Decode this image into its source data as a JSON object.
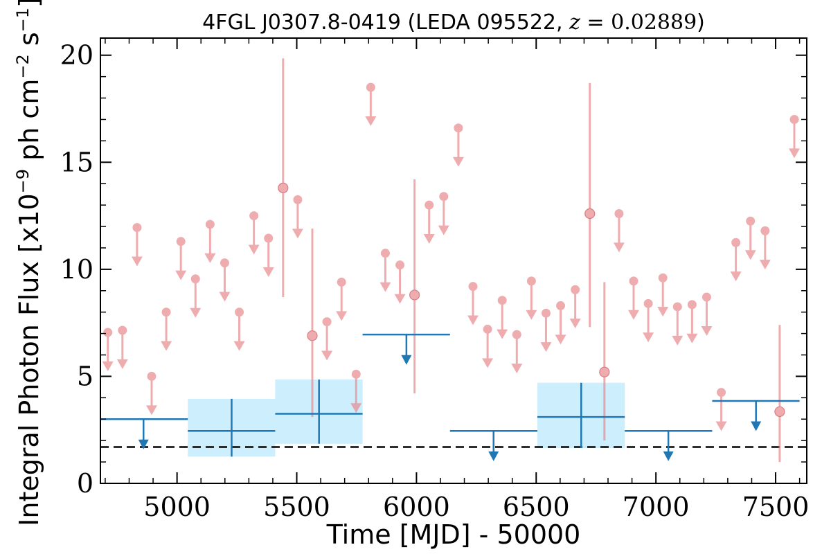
{
  "chart_data": {
    "type": "scatter",
    "title": "4FGL J0307.8-0419 (LEDA 095522, z = 0.02889)",
    "title_parts": {
      "prefix": "4FGL J0307.8-0419 (LEDA 095522, ",
      "z_symbol": "z",
      "z_equals": " = ",
      "z_value": "0.02889",
      "suffix": ")"
    },
    "xlabel": "Time [MJD] - 50000",
    "ylabel": "Integral Photon Flux [x10",
    "ylabel_exp": "−9",
    "ylabel_mid": " ph cm",
    "ylabel_exp2": "−2",
    "ylabel_tail": " s",
    "ylabel_exp3": "−1",
    "ylabel_end": "]",
    "xlim": [
      4680,
      7630
    ],
    "ylim": [
      0,
      20.8
    ],
    "xticks": [
      5000,
      5500,
      6000,
      6500,
      7000,
      7500
    ],
    "yticks": [
      0,
      5,
      10,
      15,
      20
    ],
    "grid": false,
    "baseline_dashed": 1.7,
    "colors": {
      "short_bin": "#e8868a",
      "long_bin": "#1f77b4",
      "band_fill": "#cdeefc",
      "baseline": "#000000"
    },
    "series": [
      {
        "marker": "circle",
        "upper_limits": [
          [
            4711,
            7.05
          ],
          [
            4772,
            7.15
          ],
          [
            4833,
            11.95
          ],
          [
            4894,
            5.0
          ],
          [
            4955,
            8.0
          ],
          [
            5016,
            11.3
          ],
          [
            5077,
            9.55
          ],
          [
            5138,
            12.1
          ],
          [
            5199,
            10.3
          ],
          [
            5260,
            8.0
          ],
          [
            5321,
            12.5
          ],
          [
            5382,
            11.45
          ],
          [
            5504,
            13.25
          ],
          [
            5626,
            7.55
          ],
          [
            5687,
            9.4
          ],
          [
            5748,
            5.1
          ],
          [
            5809,
            18.5
          ],
          [
            5870,
            10.75
          ],
          [
            5931,
            10.2
          ],
          [
            6053,
            13.0
          ],
          [
            6114,
            13.4
          ],
          [
            6175,
            16.6
          ],
          [
            6236,
            9.2
          ],
          [
            6297,
            7.2
          ],
          [
            6358,
            8.55
          ],
          [
            6419,
            6.95
          ],
          [
            6480,
            9.45
          ],
          [
            6541,
            7.95
          ],
          [
            6602,
            8.3
          ],
          [
            6663,
            9.05
          ],
          [
            6846,
            12.6
          ],
          [
            6907,
            9.45
          ],
          [
            6968,
            8.4
          ],
          [
            7029,
            9.6
          ],
          [
            7090,
            8.25
          ],
          [
            7151,
            8.35
          ],
          [
            7212,
            8.7
          ],
          [
            7273,
            4.25
          ],
          [
            7334,
            11.25
          ],
          [
            7395,
            12.25
          ],
          [
            7456,
            11.8
          ],
          [
            7578,
            17.0
          ]
        ],
        "detections": [
          {
            "x": 5443,
            "y": 13.8,
            "ylo": 8.7,
            "yhi": 19.85
          },
          {
            "x": 5565,
            "y": 6.9,
            "ylo": 3.1,
            "yhi": 11.9
          },
          {
            "x": 5992,
            "y": 8.8,
            "ylo": 4.2,
            "yhi": 14.2
          },
          {
            "x": 6724,
            "y": 12.6,
            "ylo": 7.3,
            "yhi": 18.7
          },
          {
            "x": 6785,
            "y": 5.2,
            "ylo": 2.0,
            "yhi": 9.4
          },
          {
            "x": 7517,
            "y": 3.35,
            "ylo": 1.0,
            "yhi": 7.4
          }
        ]
      },
      {
        "marker": "bin",
        "upper_limits": [
          {
            "x0": 4680,
            "x1": 5045,
            "y": 3.0,
            "xa": 4860
          },
          {
            "x0": 6140,
            "x1": 6505,
            "y": 2.45,
            "xa": 6322
          },
          {
            "x0": 6870,
            "x1": 7235,
            "y": 2.45,
            "xa": 7052
          },
          {
            "x0": 7235,
            "x1": 7600,
            "y": 3.85,
            "xa": 7418
          },
          {
            "x0": 5775,
            "x1": 6140,
            "y": 6.95,
            "xa": 5958
          }
        ],
        "detections": [
          {
            "x": 5228,
            "x0": 5045,
            "x1": 5410,
            "y": 2.45,
            "ylo": 1.25,
            "yhi": 3.95
          },
          {
            "x": 5593,
            "x0": 5410,
            "x1": 5775,
            "y": 3.25,
            "ylo": 1.85,
            "yhi": 4.85
          },
          {
            "x": 6688,
            "x0": 6505,
            "x1": 6870,
            "y": 3.1,
            "ylo": 1.65,
            "yhi": 4.7
          }
        ]
      }
    ]
  }
}
